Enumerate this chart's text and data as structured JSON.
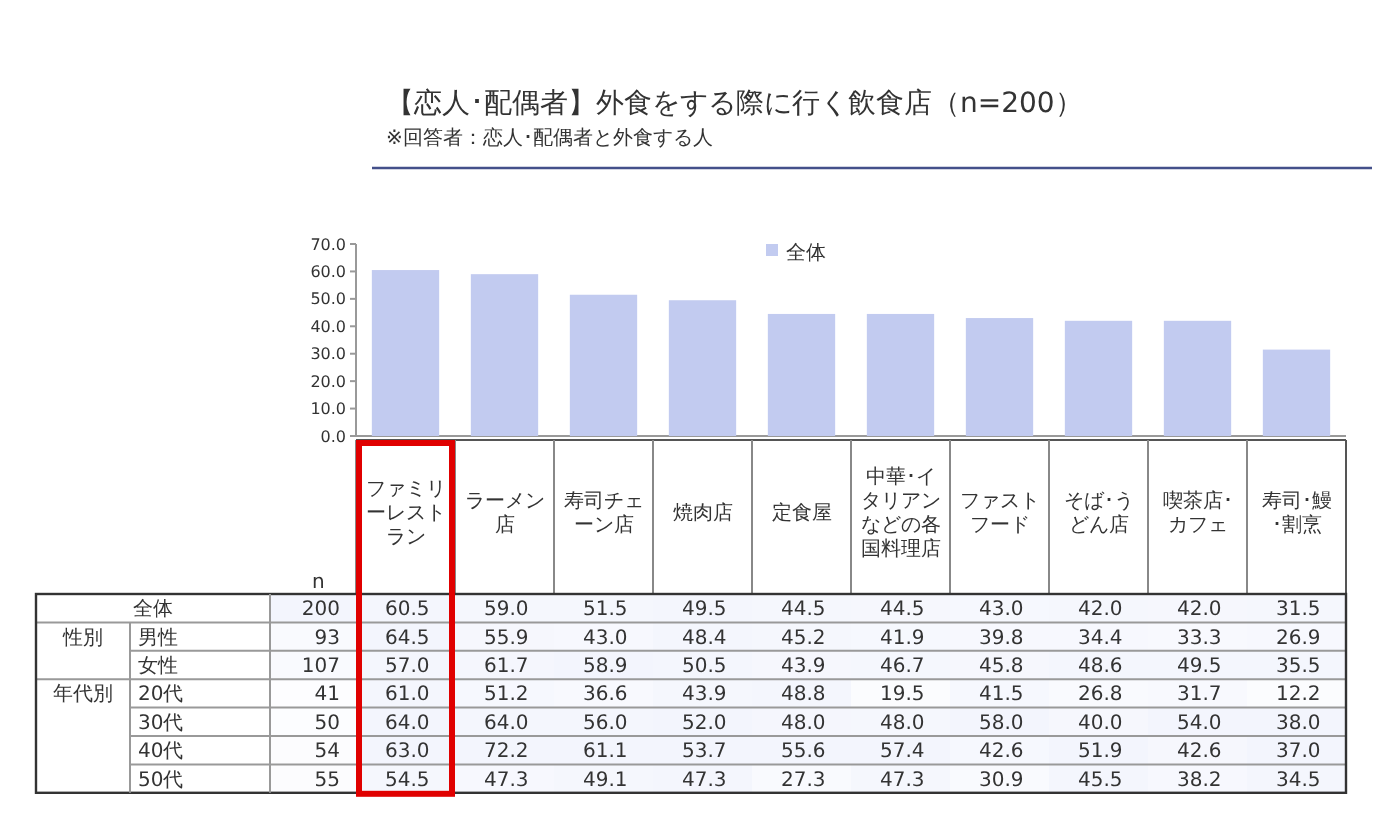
{
  "chart_data": [
    {
      "type": "bar",
      "title": "【恋人･配偶者】外食をする際に行く飲食店（n=200）",
      "annotations": [
        "※回答者：恋人･配偶者と外食する人"
      ],
      "categories": [
        null,
        null,
        null,
        null,
        null,
        null,
        null,
        null,
        null,
        null
      ],
      "series": [
        {
          "name": "全体",
          "color": "#c2cbf0",
          "values": [
            60.5,
            59.0,
            51.5,
            49.5,
            44.5,
            44.5,
            43.0,
            42.0,
            42.0,
            31.5
          ]
        }
      ],
      "ylim": [
        0,
        70
      ],
      "yticks": [
        {
          "value": 0,
          "label": "0.0"
        },
        {
          "value": 10,
          "label": "10.0"
        },
        {
          "value": 20,
          "label": "20.0"
        },
        {
          "value": 30,
          "label": "30.0"
        },
        {
          "value": 40,
          "label": "40.0"
        },
        {
          "value": 50,
          "label": "50.0"
        },
        {
          "value": 60,
          "label": "60.0"
        },
        {
          "value": 70,
          "label": "70.0"
        }
      ],
      "legend": "top"
    },
    {
      "type": "heatmap",
      "annotations": [
        "性別",
        "年代別"
      ],
      "categories": [
        "n",
        "ファミリーレストラン",
        "ラーメン店",
        "寿司チェーン店",
        "焼肉店",
        "定食屋",
        "中華･イタリアンなどの各国料理店",
        "ファストフード",
        "そば･うどん店",
        "喫茶店･カフェ",
        "寿司･鰻･割烹"
      ],
      "y_categories": [
        "全体",
        "男性",
        "女性",
        "20代",
        "30代",
        "40代",
        "50代"
      ],
      "cells": [
        [
          200,
          60.5,
          59.0,
          51.5,
          49.5,
          44.5,
          44.5,
          43.0,
          42.0,
          42.0,
          31.5
        ],
        [
          93,
          64.5,
          55.9,
          43.0,
          48.4,
          45.2,
          41.9,
          39.8,
          34.4,
          33.3,
          26.9
        ],
        [
          107,
          57.0,
          61.7,
          58.9,
          50.5,
          43.9,
          46.7,
          45.8,
          48.6,
          49.5,
          35.5
        ],
        [
          41,
          61.0,
          51.2,
          36.6,
          43.9,
          48.8,
          19.5,
          41.5,
          26.8,
          31.7,
          12.2
        ],
        [
          50,
          64.0,
          64.0,
          56.0,
          52.0,
          48.0,
          48.0,
          58.0,
          40.0,
          54.0,
          38.0
        ],
        [
          54,
          63.0,
          72.2,
          61.1,
          53.7,
          55.6,
          57.4,
          42.6,
          51.9,
          42.6,
          37.0
        ],
        [
          55,
          54.5,
          47.3,
          49.1,
          47.3,
          27.3,
          47.3,
          30.9,
          45.5,
          38.2,
          34.5
        ]
      ],
      "cell_labels": [
        [
          "200",
          "60.5",
          "59.0",
          "51.5",
          "49.5",
          "44.5",
          "44.5",
          "43.0",
          "42.0",
          "42.0",
          "31.5"
        ],
        [
          "93",
          "64.5",
          "55.9",
          "43.0",
          "48.4",
          "45.2",
          "41.9",
          "39.8",
          "34.4",
          "33.3",
          "26.9"
        ],
        [
          "107",
          "57.0",
          "61.7",
          "58.9",
          "50.5",
          "43.9",
          "46.7",
          "45.8",
          "48.6",
          "49.5",
          "35.5"
        ],
        [
          "41",
          "61.0",
          "51.2",
          "36.6",
          "43.9",
          "48.8",
          "19.5",
          "41.5",
          "26.8",
          "31.7",
          "12.2"
        ],
        [
          "50",
          "64.0",
          "64.0",
          "56.0",
          "52.0",
          "48.0",
          "48.0",
          "58.0",
          "40.0",
          "54.0",
          "38.0"
        ],
        [
          "54",
          "63.0",
          "72.2",
          "61.1",
          "53.7",
          "55.6",
          "57.4",
          "42.6",
          "51.9",
          "42.6",
          "37.0"
        ],
        [
          "55",
          "54.5",
          "47.3",
          "49.1",
          "47.3",
          "27.3",
          "47.3",
          "30.9",
          "45.5",
          "38.2",
          "34.5"
        ]
      ],
      "data_labels": true
    }
  ]
}
